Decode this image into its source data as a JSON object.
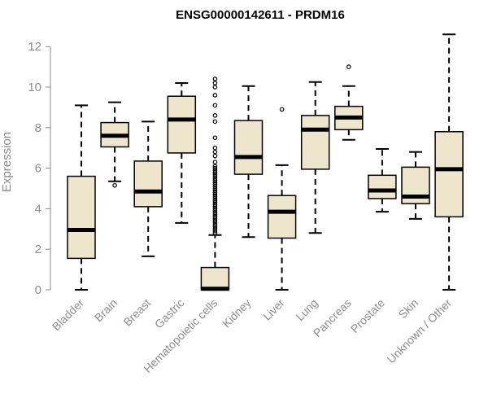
{
  "chart_data": {
    "type": "box",
    "title": "ENSG00000142611 - PRDM16",
    "xlabel": "",
    "ylabel": "Expression",
    "ylim": [
      0,
      12.6
    ],
    "yticks": [
      0,
      2,
      4,
      6,
      8,
      10,
      12
    ],
    "colors": {
      "box_fill": "#ede6cc",
      "outline": "#000000",
      "axis": "#8c8c8c"
    },
    "categories": [
      "Bladder",
      "Brain",
      "Breast",
      "Gastric",
      "Hematopoietic cells",
      "Kidney",
      "Liver",
      "Lung",
      "Pancreas",
      "Prostate",
      "Skin",
      "Unknown / Other"
    ],
    "boxes": [
      {
        "name": "Bladder",
        "min": 0.0,
        "q1": 1.55,
        "median": 2.95,
        "q3": 5.6,
        "max": 9.1,
        "outliers": []
      },
      {
        "name": "Brain",
        "min": 5.35,
        "q1": 7.05,
        "median": 7.6,
        "q3": 8.25,
        "max": 9.25,
        "outliers": [
          5.15
        ]
      },
      {
        "name": "Breast",
        "min": 1.65,
        "q1": 4.1,
        "median": 4.85,
        "q3": 6.35,
        "max": 8.3,
        "outliers": []
      },
      {
        "name": "Gastric",
        "min": 3.3,
        "q1": 6.75,
        "median": 8.4,
        "q3": 9.55,
        "max": 10.2,
        "outliers": []
      },
      {
        "name": "Hematopoietic cells",
        "min": 0.0,
        "q1": 0.0,
        "median": 0.05,
        "q3": 1.1,
        "max": 2.7,
        "outliers": [
          2.8,
          2.9,
          3.0,
          3.1,
          3.2,
          3.3,
          3.4,
          3.5,
          3.6,
          3.7,
          3.8,
          3.9,
          4.0,
          4.1,
          4.2,
          4.3,
          4.4,
          4.5,
          4.6,
          4.7,
          4.8,
          4.9,
          5.0,
          5.1,
          5.2,
          5.3,
          5.4,
          5.5,
          5.6,
          5.7,
          5.8,
          5.9,
          6.0,
          6.1,
          6.3,
          6.6,
          6.8,
          7.0,
          7.5,
          8.3,
          8.6,
          9.1,
          9.6,
          10.0,
          10.2,
          10.4
        ]
      },
      {
        "name": "Kidney",
        "min": 2.6,
        "q1": 5.7,
        "median": 6.55,
        "q3": 8.35,
        "max": 10.05,
        "outliers": []
      },
      {
        "name": "Liver",
        "min": 0.0,
        "q1": 2.55,
        "median": 3.85,
        "q3": 4.65,
        "max": 6.15,
        "outliers": [
          8.9
        ]
      },
      {
        "name": "Lung",
        "min": 2.8,
        "q1": 5.95,
        "median": 7.9,
        "q3": 8.6,
        "max": 10.25,
        "outliers": []
      },
      {
        "name": "Pancreas",
        "min": 7.4,
        "q1": 7.9,
        "median": 8.5,
        "q3": 9.05,
        "max": 10.05,
        "outliers": [
          11.0
        ]
      },
      {
        "name": "Prostate",
        "min": 3.85,
        "q1": 4.5,
        "median": 4.9,
        "q3": 5.65,
        "max": 6.95,
        "outliers": []
      },
      {
        "name": "Skin",
        "min": 3.5,
        "q1": 4.25,
        "median": 4.6,
        "q3": 6.05,
        "max": 6.8,
        "outliers": []
      },
      {
        "name": "Unknown / Other",
        "min": 0.0,
        "q1": 3.6,
        "median": 5.95,
        "q3": 7.8,
        "max": 12.6,
        "outliers": []
      }
    ]
  }
}
